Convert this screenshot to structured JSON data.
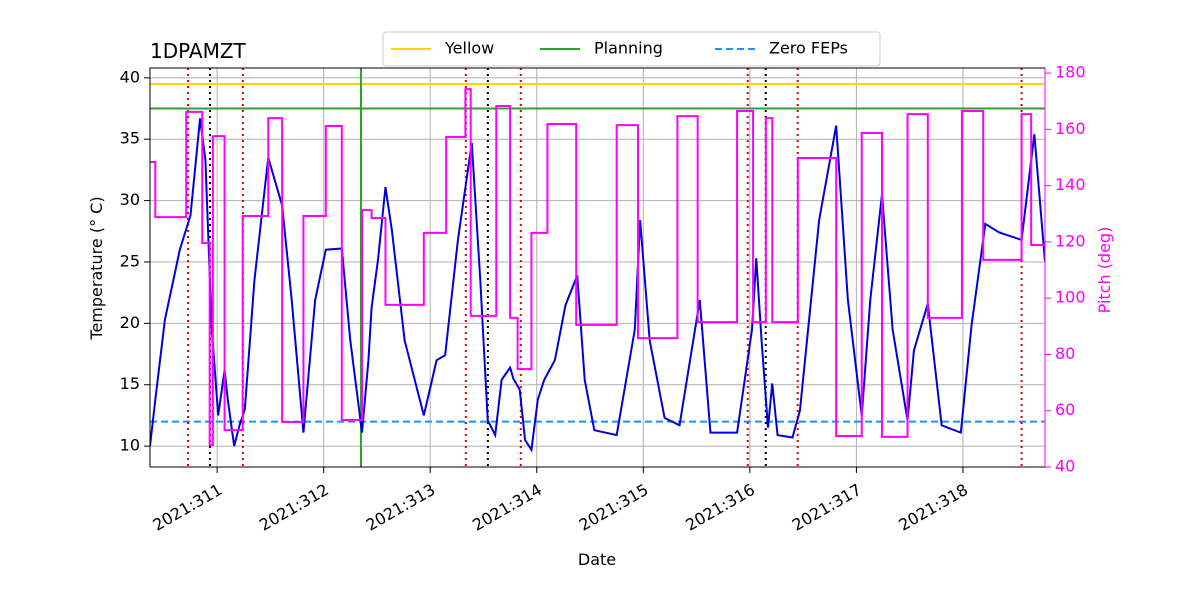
{
  "chart_data": {
    "type": "line",
    "title": "1DPAMZT",
    "xlabel": "Date",
    "ylabel": "Temperature (° C)",
    "y2label": "Pitch (deg)",
    "xlim": [
      310.37,
      318.77
    ],
    "ylim": [
      8.3,
      40.8
    ],
    "y2lim": [
      40,
      181.8
    ],
    "xticks": [
      {
        "value": 311,
        "label": "2021:311"
      },
      {
        "value": 312,
        "label": "2021:312"
      },
      {
        "value": 313,
        "label": "2021:313"
      },
      {
        "value": 314,
        "label": "2021:314"
      },
      {
        "value": 315,
        "label": "2021:315"
      },
      {
        "value": 316,
        "label": "2021:316"
      },
      {
        "value": 317,
        "label": "2021:317"
      },
      {
        "value": 318,
        "label": "2021:318"
      }
    ],
    "yticks": [
      10,
      15,
      20,
      25,
      30,
      35,
      40
    ],
    "y2ticks": [
      40,
      60,
      80,
      100,
      120,
      140,
      160,
      180
    ],
    "grid": true,
    "y2color": "#ff00ff",
    "series": [
      {
        "color": "#0000dd",
        "x": [
          310.37,
          310.42,
          310.51,
          310.65,
          310.75,
          310.84,
          310.89,
          310.95,
          311.01,
          311.07,
          311.1,
          311.16,
          311.21,
          311.26,
          311.35,
          311.48,
          311.61,
          311.7,
          311.81,
          311.92,
          312.02,
          312.17,
          312.25,
          312.36,
          312.42,
          312.45,
          312.51,
          312.58,
          312.64,
          312.76,
          312.94,
          313.06,
          313.14,
          313.26,
          313.39,
          313.47,
          313.54,
          313.61,
          313.67,
          313.75,
          313.78,
          313.84,
          313.89,
          313.95,
          314.01,
          314.07,
          314.17,
          314.27,
          314.38,
          314.45,
          314.54,
          314.75,
          314.92,
          314.97,
          315.06,
          315.2,
          315.34,
          315.53,
          315.63,
          315.88,
          316.02,
          316.06,
          316.11,
          316.17,
          316.21,
          316.26,
          316.4,
          316.47,
          316.65,
          316.81,
          316.92,
          317.05,
          317.13,
          317.24,
          317.34,
          317.48,
          317.54,
          317.67,
          317.8,
          317.98,
          318.08,
          318.21,
          318.34,
          318.55,
          318.67,
          318.77
        ],
        "values": [
          10.0,
          13.8,
          20.3,
          26.0,
          28.8,
          36.7,
          33.3,
          19.5,
          12.5,
          16.2,
          13.8,
          10.0,
          11.7,
          13.0,
          23.5,
          33.5,
          29.6,
          21.9,
          11.1,
          21.9,
          26.0,
          26.1,
          18.6,
          11.1,
          17.0,
          21.3,
          25.2,
          31.1,
          27.6,
          18.6,
          12.5,
          17.0,
          17.4,
          26.8,
          34.7,
          23.5,
          12.1,
          10.9,
          15.4,
          16.4,
          15.5,
          14.6,
          10.5,
          9.7,
          13.8,
          15.4,
          17.0,
          21.5,
          23.9,
          15.4,
          11.3,
          10.9,
          19.5,
          28.4,
          18.6,
          12.3,
          11.7,
          21.9,
          11.1,
          11.1,
          19.5,
          25.3,
          18.6,
          11.5,
          15.1,
          10.9,
          10.7,
          12.9,
          28.4,
          36.1,
          21.9,
          12.5,
          21.9,
          30.5,
          19.5,
          12.1,
          17.8,
          21.6,
          11.7,
          11.1,
          19.8,
          28.1,
          27.4,
          26.8,
          35.4,
          25.0
        ]
      },
      {
        "color": "#ff00ff",
        "axis": "y2",
        "drawstyle": "steps-post",
        "x": [
          310.37,
          310.42,
          310.71,
          310.86,
          310.93,
          310.96,
          311.07,
          311.24,
          311.48,
          311.61,
          311.81,
          312.02,
          312.17,
          312.36,
          312.45,
          312.58,
          312.94,
          313.15,
          313.33,
          313.38,
          313.62,
          313.75,
          313.82,
          313.95,
          314.1,
          314.37,
          314.75,
          314.95,
          315.32,
          315.51,
          315.88,
          316.03,
          316.15,
          316.21,
          316.45,
          316.81,
          317.05,
          317.24,
          317.48,
          317.67,
          317.99,
          318.19,
          318.55,
          318.64,
          318.77
        ],
        "values": [
          148.4,
          128.8,
          166.2,
          119.6,
          47.8,
          157.6,
          53.1,
          129.2,
          164.0,
          56.0,
          129.2,
          161.2,
          56.7,
          131.3,
          128.5,
          97.6,
          123.2,
          157.3,
          174.3,
          93.7,
          168.3,
          93.0,
          74.8,
          123.2,
          161.9,
          90.5,
          161.5,
          85.8,
          164.7,
          91.5,
          166.5,
          91.5,
          164.0,
          91.5,
          149.8,
          51.0,
          158.7,
          50.7,
          165.4,
          93.0,
          166.5,
          113.6,
          165.4,
          118.9,
          118.9
        ]
      }
    ],
    "hlines": [
      {
        "name": "Yellow",
        "value": 39.5,
        "color": "#ffd700",
        "dash": "solid"
      },
      {
        "name": "Planning",
        "value": 37.5,
        "color": "#2ca02c",
        "dash": "solid"
      },
      {
        "name": "Zero FEPs",
        "value": 12,
        "color": "#1e90ff",
        "dash": "dashed"
      }
    ],
    "vlines": [
      {
        "color": "#2ca02c",
        "dash": "solid",
        "x": [
          312.35
        ]
      },
      {
        "color": "#dd0000",
        "dash": "dotted",
        "x": [
          310.727,
          311.242,
          313.334,
          313.85,
          315.98,
          316.449,
          318.55
        ]
      },
      {
        "color": "#000000",
        "dash": "dotted",
        "x": [
          310.933,
          313.541,
          316.149
        ]
      }
    ],
    "legend": "upper center"
  }
}
